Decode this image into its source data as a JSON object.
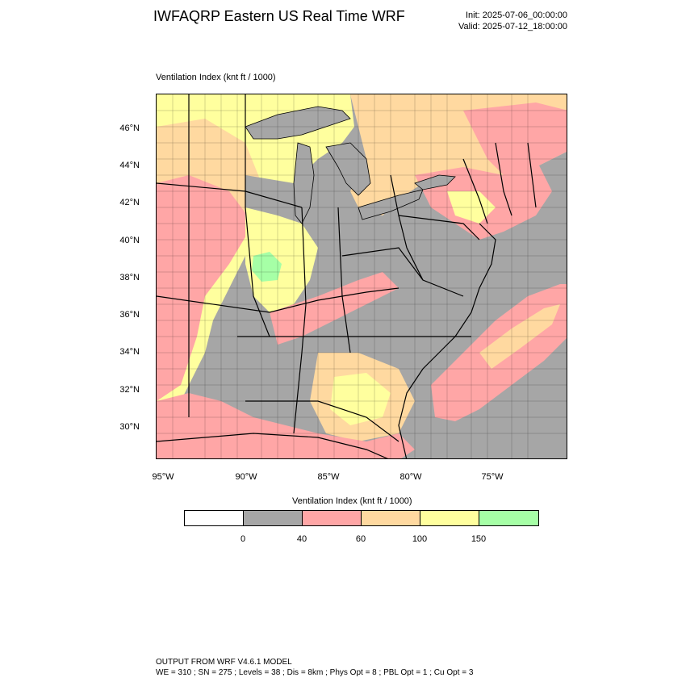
{
  "header": {
    "title": "IWFAQRP Eastern US Real Time WRF",
    "init": "Init: 2025-07-06_00:00:00",
    "valid": "Valid: 2025-07-12_18:00:00"
  },
  "map": {
    "field_label": "Ventilation Index   (knt ft / 1000)",
    "lat_labels": [
      "46°N",
      "44°N",
      "42°N",
      "40°N",
      "38°N",
      "36°N",
      "34°N",
      "32°N",
      "30°N"
    ],
    "lon_labels": [
      "95°W",
      "90°W",
      "85°W",
      "80°W",
      "75°W"
    ],
    "colors": {
      "ocean": "#a6a6a6",
      "land_low": "#a6a6a6",
      "pink": "#ffa6a6",
      "orange": "#ffd9a0",
      "yellow": "#ffff9e",
      "green": "#a6ffa6",
      "white": "#ffffff"
    }
  },
  "colorbar": {
    "title": "Ventilation Index  (knt ft / 1000)",
    "colors": [
      "#ffffff",
      "#a6a6a6",
      "#ffa6a6",
      "#ffd9a0",
      "#ffff9e",
      "#a6ffa6"
    ],
    "ticks": [
      "0",
      "40",
      "60",
      "100",
      "150"
    ]
  },
  "footer": {
    "line1": "OUTPUT FROM WRF V4.6.1 MODEL",
    "line2": "WE = 310 ; SN = 275 ; Levels = 38 ; Dis = 8km ; Phys Opt = 8 ; PBL Opt = 1 ; Cu Opt = 3"
  }
}
